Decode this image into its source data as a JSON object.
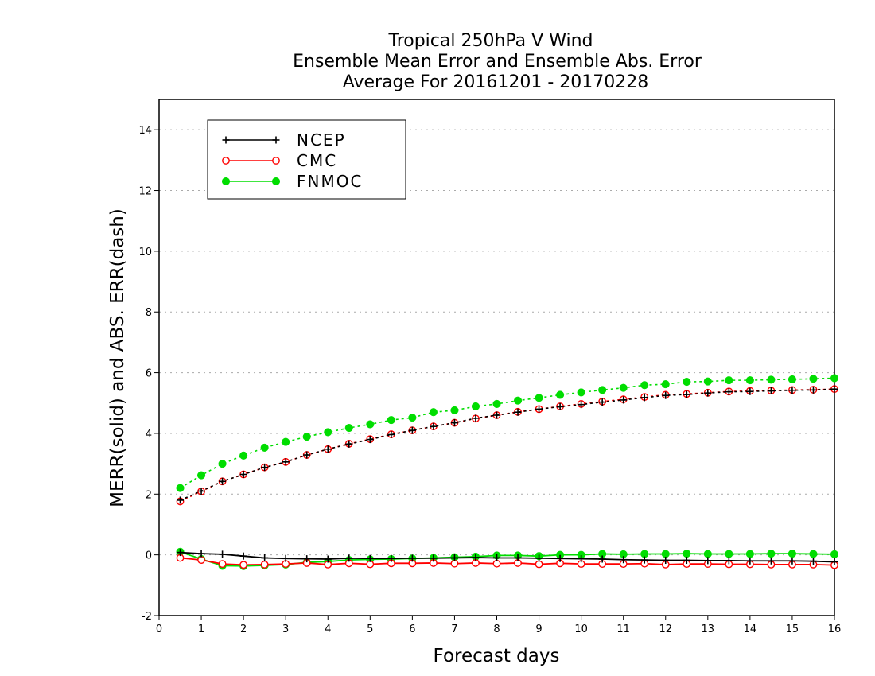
{
  "chart_data": {
    "type": "line",
    "title_lines": [
      "Tropical 250hPa V Wind",
      "Ensemble Mean Error and Ensemble Abs. Error",
      "Average For 20161201 - 20170228"
    ],
    "xlabel": "Forecast days",
    "ylabel": "MERR(solid) and ABS. ERR(dash)",
    "xlim": [
      0,
      16
    ],
    "ylim": [
      -2,
      15
    ],
    "xticks": [
      "0",
      "1",
      "2",
      "3",
      "4",
      "5",
      "6",
      "7",
      "8",
      "9",
      "10",
      "11",
      "12",
      "13",
      "14",
      "15",
      "16"
    ],
    "yticks": [
      "-2",
      "0",
      "2",
      "4",
      "6",
      "8",
      "10",
      "12",
      "14"
    ],
    "grid": "horizontal dotted",
    "legend_position": "top-left",
    "legend": [
      "NCEP",
      "CMC",
      "FNMOC"
    ],
    "x": [
      0.5,
      1,
      1.5,
      2,
      2.5,
      3,
      3.5,
      4,
      4.5,
      5,
      5.5,
      6,
      6.5,
      7,
      7.5,
      8,
      8.5,
      9,
      9.5,
      10,
      10.5,
      11,
      11.5,
      12,
      12.5,
      13,
      13.5,
      14,
      14.5,
      15,
      15.5,
      16
    ],
    "series": [
      {
        "name": "NCEP",
        "color": "#000000",
        "marker": "plus",
        "merr": [
          0.08,
          0.04,
          0.02,
          -0.04,
          -0.1,
          -0.12,
          -0.13,
          -0.14,
          -0.11,
          -0.12,
          -0.12,
          -0.11,
          -0.11,
          -0.1,
          -0.09,
          -0.1,
          -0.1,
          -0.11,
          -0.12,
          -0.13,
          -0.14,
          -0.16,
          -0.17,
          -0.18,
          -0.18,
          -0.19,
          -0.19,
          -0.2,
          -0.2,
          -0.2,
          -0.21,
          -0.23
        ],
        "abserr": [
          1.8,
          2.1,
          2.42,
          2.65,
          2.88,
          3.06,
          3.29,
          3.48,
          3.65,
          3.8,
          3.96,
          4.1,
          4.23,
          4.35,
          4.5,
          4.6,
          4.7,
          4.8,
          4.88,
          4.95,
          5.03,
          5.1,
          5.18,
          5.25,
          5.28,
          5.33,
          5.37,
          5.38,
          5.4,
          5.42,
          5.43,
          5.46
        ]
      },
      {
        "name": "CMC",
        "color": "#ff0000",
        "marker": "open-circle",
        "merr": [
          -0.1,
          -0.17,
          -0.3,
          -0.33,
          -0.32,
          -0.3,
          -0.27,
          -0.32,
          -0.28,
          -0.31,
          -0.28,
          -0.28,
          -0.27,
          -0.29,
          -0.27,
          -0.29,
          -0.27,
          -0.31,
          -0.28,
          -0.3,
          -0.3,
          -0.3,
          -0.29,
          -0.32,
          -0.3,
          -0.3,
          -0.31,
          -0.31,
          -0.32,
          -0.32,
          -0.32,
          -0.34
        ],
        "abserr": [
          1.76,
          2.09,
          2.42,
          2.65,
          2.88,
          3.06,
          3.29,
          3.48,
          3.66,
          3.81,
          3.97,
          4.1,
          4.23,
          4.35,
          4.49,
          4.6,
          4.71,
          4.8,
          4.89,
          4.97,
          5.05,
          5.12,
          5.2,
          5.27,
          5.3,
          5.34,
          5.38,
          5.4,
          5.41,
          5.43,
          5.44,
          5.46
        ]
      },
      {
        "name": "FNMOC",
        "color": "#00dd00",
        "marker": "filled-circle",
        "merr": [
          0.1,
          -0.14,
          -0.36,
          -0.37,
          -0.35,
          -0.32,
          -0.25,
          -0.22,
          -0.17,
          -0.15,
          -0.14,
          -0.12,
          -0.1,
          -0.08,
          -0.06,
          -0.02,
          -0.02,
          -0.04,
          0.0,
          0.0,
          0.03,
          0.02,
          0.03,
          0.03,
          0.04,
          0.03,
          0.03,
          0.03,
          0.04,
          0.04,
          0.03,
          0.02
        ],
        "abserr": [
          2.2,
          2.62,
          3.0,
          3.27,
          3.53,
          3.72,
          3.89,
          4.04,
          4.18,
          4.3,
          4.44,
          4.52,
          4.7,
          4.76,
          4.89,
          4.97,
          5.08,
          5.17,
          5.27,
          5.35,
          5.43,
          5.5,
          5.59,
          5.62,
          5.7,
          5.71,
          5.75,
          5.75,
          5.77,
          5.78,
          5.8,
          5.82
        ]
      }
    ]
  }
}
